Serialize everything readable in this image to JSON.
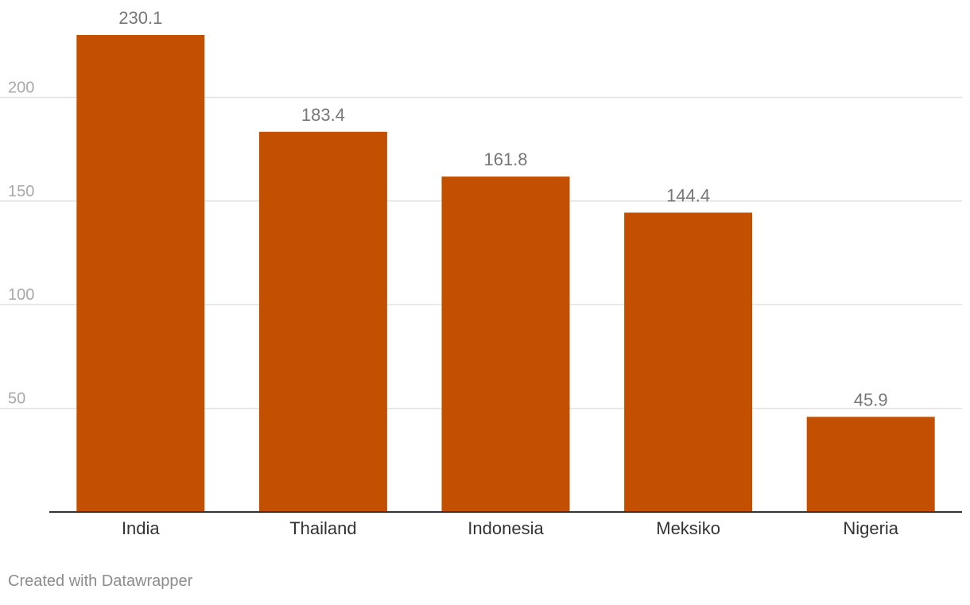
{
  "chart_data": {
    "type": "bar",
    "categories": [
      "India",
      "Thailand",
      "Indonesia",
      "Meksiko",
      "Nigeria"
    ],
    "values": [
      230.1,
      183.4,
      161.8,
      144.4,
      45.9
    ],
    "value_labels": [
      "230.1",
      "183.4",
      "161.8",
      "144.4",
      "45.9"
    ],
    "ylim": [
      0,
      230.1
    ],
    "y_ticks": [
      50,
      100,
      150,
      200
    ],
    "y_tick_labels": [
      "50",
      "100",
      "150",
      "200"
    ],
    "grid": true,
    "bar_color": "#c25000",
    "title": "",
    "xlabel": "",
    "ylabel": ""
  },
  "footer": {
    "credit": "Created with Datawrapper"
  },
  "colors": {
    "bar": "#c25000",
    "gridline": "#e2e2e2",
    "baseline": "#333333",
    "tick_label": "#a8a8a8",
    "category_label": "#333333",
    "value_label": "#777777",
    "credit": "#8c8c8c"
  }
}
